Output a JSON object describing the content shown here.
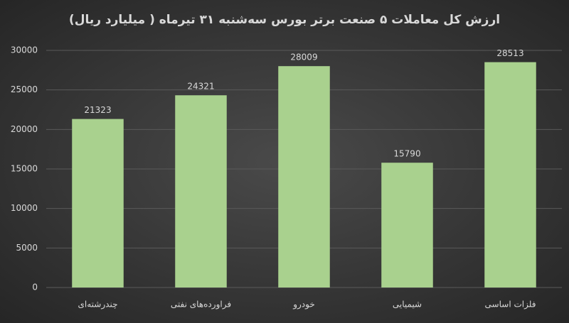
{
  "chart_data": {
    "type": "bar",
    "title": "ارزش کل معاملات ۵ صنعت برتر بورس سه‌شنبه ۳۱ تیرماه ( میلیارد ریال)",
    "categories": [
      "چندرشته‌ای",
      "فراورده‌های نفتی",
      "خودرو",
      "شیمیایی",
      "فلزات اساسی"
    ],
    "values": [
      21323,
      24321,
      28009,
      15790,
      28513
    ],
    "color": "#a9d18e",
    "ylim": [
      0,
      30000
    ],
    "yticks": [
      0,
      5000,
      10000,
      15000,
      20000,
      25000,
      30000
    ],
    "grid": true
  }
}
